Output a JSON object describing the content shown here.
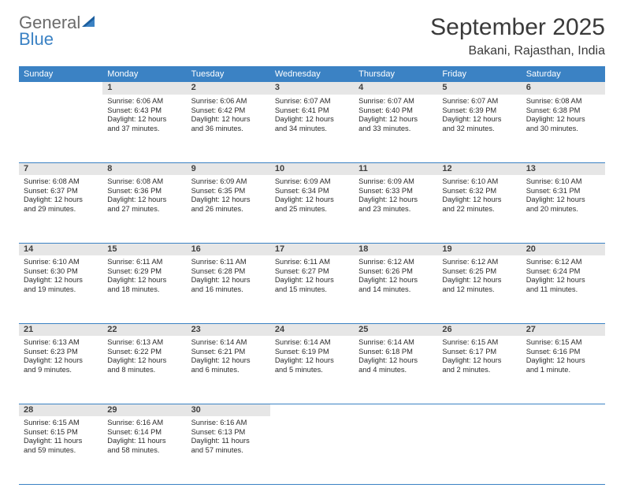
{
  "logo": {
    "general": "General",
    "blue": "Blue"
  },
  "title": "September 2025",
  "location": "Bakani, Rajasthan, India",
  "colors": {
    "accent": "#3b82c4",
    "daynum_bg": "#e6e6e6",
    "text": "#3a3a3a"
  },
  "weekdays": [
    "Sunday",
    "Monday",
    "Tuesday",
    "Wednesday",
    "Thursday",
    "Friday",
    "Saturday"
  ],
  "weeks": [
    [
      null,
      {
        "n": "1",
        "sr": "Sunrise: 6:06 AM",
        "ss": "Sunset: 6:43 PM",
        "d1": "Daylight: 12 hours",
        "d2": "and 37 minutes."
      },
      {
        "n": "2",
        "sr": "Sunrise: 6:06 AM",
        "ss": "Sunset: 6:42 PM",
        "d1": "Daylight: 12 hours",
        "d2": "and 36 minutes."
      },
      {
        "n": "3",
        "sr": "Sunrise: 6:07 AM",
        "ss": "Sunset: 6:41 PM",
        "d1": "Daylight: 12 hours",
        "d2": "and 34 minutes."
      },
      {
        "n": "4",
        "sr": "Sunrise: 6:07 AM",
        "ss": "Sunset: 6:40 PM",
        "d1": "Daylight: 12 hours",
        "d2": "and 33 minutes."
      },
      {
        "n": "5",
        "sr": "Sunrise: 6:07 AM",
        "ss": "Sunset: 6:39 PM",
        "d1": "Daylight: 12 hours",
        "d2": "and 32 minutes."
      },
      {
        "n": "6",
        "sr": "Sunrise: 6:08 AM",
        "ss": "Sunset: 6:38 PM",
        "d1": "Daylight: 12 hours",
        "d2": "and 30 minutes."
      }
    ],
    [
      {
        "n": "7",
        "sr": "Sunrise: 6:08 AM",
        "ss": "Sunset: 6:37 PM",
        "d1": "Daylight: 12 hours",
        "d2": "and 29 minutes."
      },
      {
        "n": "8",
        "sr": "Sunrise: 6:08 AM",
        "ss": "Sunset: 6:36 PM",
        "d1": "Daylight: 12 hours",
        "d2": "and 27 minutes."
      },
      {
        "n": "9",
        "sr": "Sunrise: 6:09 AM",
        "ss": "Sunset: 6:35 PM",
        "d1": "Daylight: 12 hours",
        "d2": "and 26 minutes."
      },
      {
        "n": "10",
        "sr": "Sunrise: 6:09 AM",
        "ss": "Sunset: 6:34 PM",
        "d1": "Daylight: 12 hours",
        "d2": "and 25 minutes."
      },
      {
        "n": "11",
        "sr": "Sunrise: 6:09 AM",
        "ss": "Sunset: 6:33 PM",
        "d1": "Daylight: 12 hours",
        "d2": "and 23 minutes."
      },
      {
        "n": "12",
        "sr": "Sunrise: 6:10 AM",
        "ss": "Sunset: 6:32 PM",
        "d1": "Daylight: 12 hours",
        "d2": "and 22 minutes."
      },
      {
        "n": "13",
        "sr": "Sunrise: 6:10 AM",
        "ss": "Sunset: 6:31 PM",
        "d1": "Daylight: 12 hours",
        "d2": "and 20 minutes."
      }
    ],
    [
      {
        "n": "14",
        "sr": "Sunrise: 6:10 AM",
        "ss": "Sunset: 6:30 PM",
        "d1": "Daylight: 12 hours",
        "d2": "and 19 minutes."
      },
      {
        "n": "15",
        "sr": "Sunrise: 6:11 AM",
        "ss": "Sunset: 6:29 PM",
        "d1": "Daylight: 12 hours",
        "d2": "and 18 minutes."
      },
      {
        "n": "16",
        "sr": "Sunrise: 6:11 AM",
        "ss": "Sunset: 6:28 PM",
        "d1": "Daylight: 12 hours",
        "d2": "and 16 minutes."
      },
      {
        "n": "17",
        "sr": "Sunrise: 6:11 AM",
        "ss": "Sunset: 6:27 PM",
        "d1": "Daylight: 12 hours",
        "d2": "and 15 minutes."
      },
      {
        "n": "18",
        "sr": "Sunrise: 6:12 AM",
        "ss": "Sunset: 6:26 PM",
        "d1": "Daylight: 12 hours",
        "d2": "and 14 minutes."
      },
      {
        "n": "19",
        "sr": "Sunrise: 6:12 AM",
        "ss": "Sunset: 6:25 PM",
        "d1": "Daylight: 12 hours",
        "d2": "and 12 minutes."
      },
      {
        "n": "20",
        "sr": "Sunrise: 6:12 AM",
        "ss": "Sunset: 6:24 PM",
        "d1": "Daylight: 12 hours",
        "d2": "and 11 minutes."
      }
    ],
    [
      {
        "n": "21",
        "sr": "Sunrise: 6:13 AM",
        "ss": "Sunset: 6:23 PM",
        "d1": "Daylight: 12 hours",
        "d2": "and 9 minutes."
      },
      {
        "n": "22",
        "sr": "Sunrise: 6:13 AM",
        "ss": "Sunset: 6:22 PM",
        "d1": "Daylight: 12 hours",
        "d2": "and 8 minutes."
      },
      {
        "n": "23",
        "sr": "Sunrise: 6:14 AM",
        "ss": "Sunset: 6:21 PM",
        "d1": "Daylight: 12 hours",
        "d2": "and 6 minutes."
      },
      {
        "n": "24",
        "sr": "Sunrise: 6:14 AM",
        "ss": "Sunset: 6:19 PM",
        "d1": "Daylight: 12 hours",
        "d2": "and 5 minutes."
      },
      {
        "n": "25",
        "sr": "Sunrise: 6:14 AM",
        "ss": "Sunset: 6:18 PM",
        "d1": "Daylight: 12 hours",
        "d2": "and 4 minutes."
      },
      {
        "n": "26",
        "sr": "Sunrise: 6:15 AM",
        "ss": "Sunset: 6:17 PM",
        "d1": "Daylight: 12 hours",
        "d2": "and 2 minutes."
      },
      {
        "n": "27",
        "sr": "Sunrise: 6:15 AM",
        "ss": "Sunset: 6:16 PM",
        "d1": "Daylight: 12 hours",
        "d2": "and 1 minute."
      }
    ],
    [
      {
        "n": "28",
        "sr": "Sunrise: 6:15 AM",
        "ss": "Sunset: 6:15 PM",
        "d1": "Daylight: 11 hours",
        "d2": "and 59 minutes."
      },
      {
        "n": "29",
        "sr": "Sunrise: 6:16 AM",
        "ss": "Sunset: 6:14 PM",
        "d1": "Daylight: 11 hours",
        "d2": "and 58 minutes."
      },
      {
        "n": "30",
        "sr": "Sunrise: 6:16 AM",
        "ss": "Sunset: 6:13 PM",
        "d1": "Daylight: 11 hours",
        "d2": "and 57 minutes."
      },
      null,
      null,
      null,
      null
    ]
  ]
}
